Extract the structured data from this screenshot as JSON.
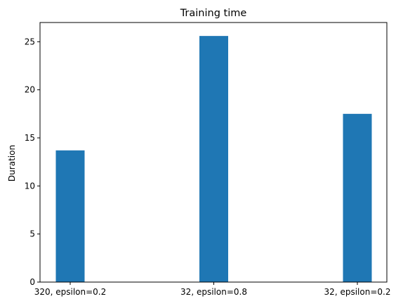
{
  "chart_data": {
    "type": "bar",
    "title": "Training time",
    "xlabel": "",
    "ylabel": "Duration",
    "categories": [
      "320, epsilon=0.2",
      "32, epsilon=0.8",
      "32, epsilon=0.2"
    ],
    "values": [
      13.7,
      25.6,
      17.5
    ],
    "ylim": [
      0,
      27
    ],
    "yticks": [
      0,
      5,
      10,
      15,
      20,
      25
    ],
    "bar_color": "#1f77b4",
    "grid": false,
    "legend": "none"
  }
}
